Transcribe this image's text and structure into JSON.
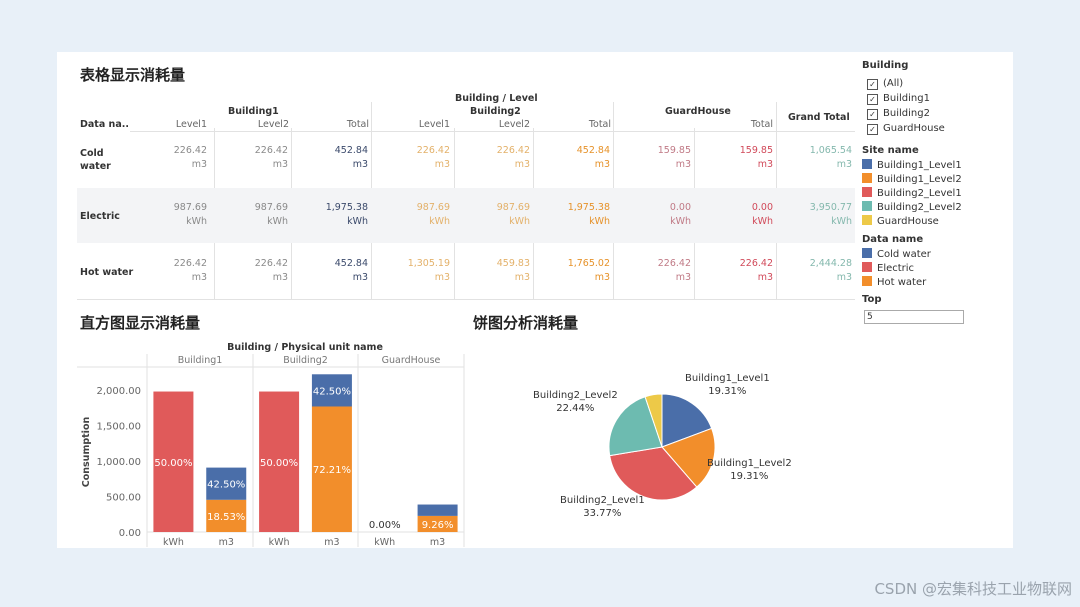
{
  "table_section": {
    "title": "表格显示消耗量",
    "header_top": "Building / Level",
    "groups": [
      "Building1",
      "Building2",
      "GuardHouse"
    ],
    "grand_total": "Grand Total",
    "row_header": "Data na..",
    "subcols": [
      "Level1",
      "Level2",
      "Total",
      "Level1",
      "Level2",
      "Total",
      "Total"
    ],
    "rows": [
      {
        "label": "Cold water",
        "cells": [
          [
            "226.42",
            "m3"
          ],
          [
            "226.42",
            "m3"
          ],
          [
            "452.84",
            "m3"
          ],
          [
            "226.42",
            "m3"
          ],
          [
            "226.42",
            "m3"
          ],
          [
            "452.84",
            "m3"
          ],
          [
            "159.85",
            "m3"
          ],
          [
            "159.85",
            "m3"
          ],
          [
            "1,065.54",
            "m3"
          ]
        ]
      },
      {
        "label": "Electric",
        "cells": [
          [
            "987.69",
            "kWh"
          ],
          [
            "987.69",
            "kWh"
          ],
          [
            "1,975.38",
            "kWh"
          ],
          [
            "987.69",
            "kWh"
          ],
          [
            "987.69",
            "kWh"
          ],
          [
            "1,975.38",
            "kWh"
          ],
          [
            "0.00",
            "kWh"
          ],
          [
            "0.00",
            "kWh"
          ],
          [
            "3,950.77",
            "kWh"
          ]
        ]
      },
      {
        "label": "Hot water",
        "cells": [
          [
            "226.42",
            "m3"
          ],
          [
            "226.42",
            "m3"
          ],
          [
            "452.84",
            "m3"
          ],
          [
            "1,305.19",
            "m3"
          ],
          [
            "459.83",
            "m3"
          ],
          [
            "1,765.02",
            "m3"
          ],
          [
            "226.42",
            "m3"
          ],
          [
            "226.42",
            "m3"
          ],
          [
            "2,444.28",
            "m3"
          ]
        ]
      }
    ]
  },
  "bar_section": {
    "title": "直方图显示消耗量",
    "header": "Building / Physical unit name",
    "groups": [
      "Building1",
      "Building2",
      "GuardHouse"
    ],
    "ylabel": "Consumption",
    "ticks": [
      "2,000.00",
      "1,500.00",
      "1,000.00",
      "500.00",
      "0.00"
    ],
    "xlabels": [
      "kWh",
      "m3",
      "kWh",
      "m3",
      "kWh",
      "m3"
    ],
    "colors": {
      "electric": "#e05a5a",
      "cold": "#4a6ea9",
      "hot": "#f28e2b"
    }
  },
  "chart_data": [
    {
      "type": "bar",
      "stacked": true,
      "title": "直方图显示消耗量",
      "xlabel": "Building / Physical unit name",
      "ylabel": "Consumption",
      "categories": [
        "Building1 kWh",
        "Building1 m3",
        "Building2 kWh",
        "Building2 m3",
        "GuardHouse kWh",
        "GuardHouse m3"
      ],
      "series": [
        {
          "name": "Electric",
          "values": [
            1975.38,
            0,
            1975.38,
            0,
            0,
            0
          ],
          "labels": [
            "50.00%",
            "",
            "50.00%",
            "",
            "0.00%",
            ""
          ]
        },
        {
          "name": "Hot water",
          "values": [
            0,
            452.84,
            0,
            1765.02,
            0,
            226.42
          ],
          "labels": [
            "",
            "18.53%",
            "",
            "72.21%",
            "",
            "9.26%"
          ]
        },
        {
          "name": "Cold water",
          "values": [
            0,
            452.84,
            0,
            452.84,
            0,
            159.85
          ],
          "labels": [
            "",
            "42.50%",
            "",
            "42.50%",
            "",
            ""
          ]
        }
      ],
      "ylim": [
        0,
        2250
      ]
    },
    {
      "type": "pie",
      "title": "饼图分析消耗量",
      "slices": [
        {
          "name": "Building1_Level1",
          "value": 19.31,
          "label": "19.31%",
          "color": "#4a6ea9"
        },
        {
          "name": "Building1_Level2",
          "value": 19.31,
          "label": "19.31%",
          "color": "#f28e2b"
        },
        {
          "name": "Building2_Level1",
          "value": 33.77,
          "label": "33.77%",
          "color": "#e05a5a"
        },
        {
          "name": "Building2_Level2",
          "value": 22.44,
          "label": "22.44%",
          "color": "#6dbbb0"
        },
        {
          "name": "GuardHouse",
          "value": 5.17,
          "label": "",
          "color": "#edc948"
        }
      ]
    }
  ],
  "pie_section": {
    "title": "饼图分析消耗量"
  },
  "filters": {
    "building_title": "Building",
    "building_options": [
      "(All)",
      "Building1",
      "Building2",
      "GuardHouse"
    ],
    "site_title": "Site name",
    "sites": [
      {
        "name": "Building1_Level1",
        "color": "#4a6ea9"
      },
      {
        "name": "Building1_Level2",
        "color": "#f28e2b"
      },
      {
        "name": "Building2_Level1",
        "color": "#e05a5a"
      },
      {
        "name": "Building2_Level2",
        "color": "#6dbbb0"
      },
      {
        "name": "GuardHouse",
        "color": "#edc948"
      }
    ],
    "data_title": "Data name",
    "data_names": [
      {
        "name": "Cold water",
        "color": "#4a6ea9"
      },
      {
        "name": "Electric",
        "color": "#e05a5a"
      },
      {
        "name": "Hot water",
        "color": "#f28e2b"
      }
    ],
    "top_title": "Top",
    "top_value": "5"
  },
  "watermark": "CSDN @宏集科技工业物联网"
}
